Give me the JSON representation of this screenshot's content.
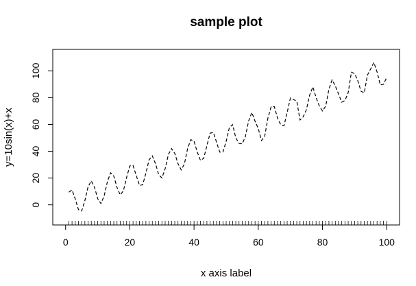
{
  "chart_data": {
    "type": "line",
    "title": "sample plot",
    "xlabel": "x axis label",
    "ylabel": "y=10sin(x)+x",
    "xlim": [
      -4,
      104
    ],
    "ylim": [
      -15,
      116
    ],
    "x_ticks": [
      0,
      20,
      40,
      60,
      80,
      100
    ],
    "y_ticks": [
      0,
      20,
      40,
      60,
      80,
      100
    ],
    "x_tick_labels": [
      "0",
      "20",
      "40",
      "60",
      "80",
      "100"
    ],
    "y_tick_labels": [
      "0",
      "20",
      "40",
      "60",
      "80",
      "100"
    ],
    "line_style": "dashed",
    "rug": "x values 1 to 100 along bottom",
    "grid": false,
    "legend": "none",
    "series": [
      {
        "x": [
          1,
          2,
          3,
          4,
          5,
          6,
          7,
          8,
          9,
          10,
          11,
          12,
          13,
          14,
          15,
          16,
          17,
          18,
          19,
          20,
          21,
          22,
          23,
          24,
          25,
          26,
          27,
          28,
          29,
          30,
          31,
          32,
          33,
          34,
          35,
          36,
          37,
          38,
          39,
          40,
          41,
          42,
          43,
          44,
          45,
          46,
          47,
          48,
          49,
          50,
          51,
          52,
          53,
          54,
          55,
          56,
          57,
          58,
          59,
          60,
          61,
          62,
          63,
          64,
          65,
          66,
          67,
          68,
          69,
          70,
          71,
          72,
          73,
          74,
          75,
          76,
          77,
          78,
          79,
          80,
          81,
          82,
          83,
          84,
          85,
          86,
          87,
          88,
          89,
          90,
          91,
          92,
          93,
          94,
          95,
          96,
          97,
          98,
          99,
          100
        ],
        "values": [
          9.41,
          11.09,
          4.41,
          -3.57,
          -4.59,
          3.21,
          13.57,
          17.89,
          13.12,
          4.56,
          1.0,
          6.63,
          17.2,
          23.91,
          21.5,
          13.12,
          7.39,
          10.49,
          20.5,
          29.13,
          29.37,
          21.91,
          14.54,
          14.94,
          23.68,
          33.63,
          36.56,
          30.71,
          22.37,
          20.12,
          26.96,
          37.51,
          42.0,
          38.39,
          30.72,
          26.09,
          30.57,
          42.04,
          48.64,
          47.45,
          39.42,
          33.16,
          34.68,
          44.18,
          53.51,
          54.01,
          46.77,
          39.36,
          39.47,
          47.38,
          57.7,
          59.87,
          50.04,
          45.84,
          45.48,
          51.07,
          62.66,
          68.93,
          62.37,
          56.95,
          48.01,
          51.13,
          64.68,
          73.2,
          73.26,
          64.74,
          59.75,
          58.97,
          68.87,
          79.74,
          78.58,
          77.26,
          63.34,
          65.74,
          71.12,
          81.87,
          87.99,
          80.13,
          73.85,
          70.06,
          73.66,
          86.34,
          93.27,
          88.67,
          82.62,
          76.59,
          77.91,
          83.64,
          98.94,
          98.0,
          92.52,
          84.79,
          83.5,
          96.81,
          101.42,
          106.21,
          99.17,
          89.46,
          89.99,
          95.06
        ]
      }
    ]
  }
}
